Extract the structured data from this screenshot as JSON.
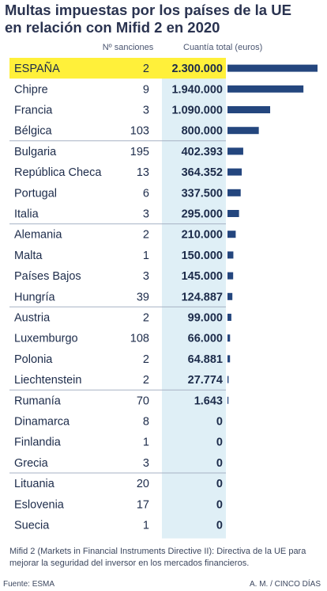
{
  "title_line1": "Multas impuestas por los países de la UE",
  "title_line2": "en relación con  Mifid 2 en 2020",
  "chart_data": {
    "type": "bar",
    "orientation": "horizontal",
    "title": "Multas impuestas por los países de la UE en relación con  Mifid 2 en 2020",
    "columns": [
      "Nº sanciones",
      "Cuantía total (euros)"
    ],
    "highlighted_category": "ESPAÑA",
    "categories": [
      "ESPAÑA",
      "Chipre",
      "Francia",
      "Bélgica",
      "Bulgaria",
      "República Checa",
      "Portugal",
      "Italia",
      "Alemania",
      "Malta",
      "Países Bajos",
      "Hungría",
      "Austria",
      "Luxemburgo",
      "Polonia",
      "Liechtenstein",
      "Rumanía",
      "Dinamarca",
      "Finlandia",
      "Grecia",
      "Lituania",
      "Eslovenia",
      "Suecia"
    ],
    "sanciones": [
      2,
      9,
      3,
      103,
      195,
      13,
      6,
      3,
      2,
      1,
      3,
      39,
      2,
      108,
      2,
      2,
      70,
      8,
      1,
      3,
      20,
      17,
      1
    ],
    "values": [
      2300000,
      1940000,
      1090000,
      800000,
      402393,
      364352,
      337500,
      295000,
      210000,
      150000,
      145000,
      124887,
      99000,
      66000,
      64881,
      27774,
      1643,
      0,
      0,
      0,
      0,
      0,
      0
    ],
    "value_labels": [
      "2.300.000",
      "1.940.000",
      "1.090.000",
      "800.000",
      "402.393",
      "364.352",
      "337.500",
      "295.000",
      "210.000",
      "150.000",
      "145.000",
      "124.887",
      "99.000",
      "66.000",
      "64.881",
      "27.774",
      "1.643",
      "0",
      "0",
      "0",
      "0",
      "0",
      "0"
    ],
    "group_sizes": [
      4,
      4,
      4,
      4,
      4,
      3
    ],
    "colors": {
      "bar": "#24467e",
      "highlight": "#fff03a",
      "amount_column": "#dfeff6",
      "divider": "#a7b2c4",
      "text": "#1c2b4a"
    }
  },
  "note": "Mifid 2 (Markets in Financial Instruments Directive II): Directiva de la UE para mejorar la seguridad del inversor en los mercados financieros.",
  "source": "Fuente: ESMA",
  "credit": "A. M. / CINCO DÍAS"
}
